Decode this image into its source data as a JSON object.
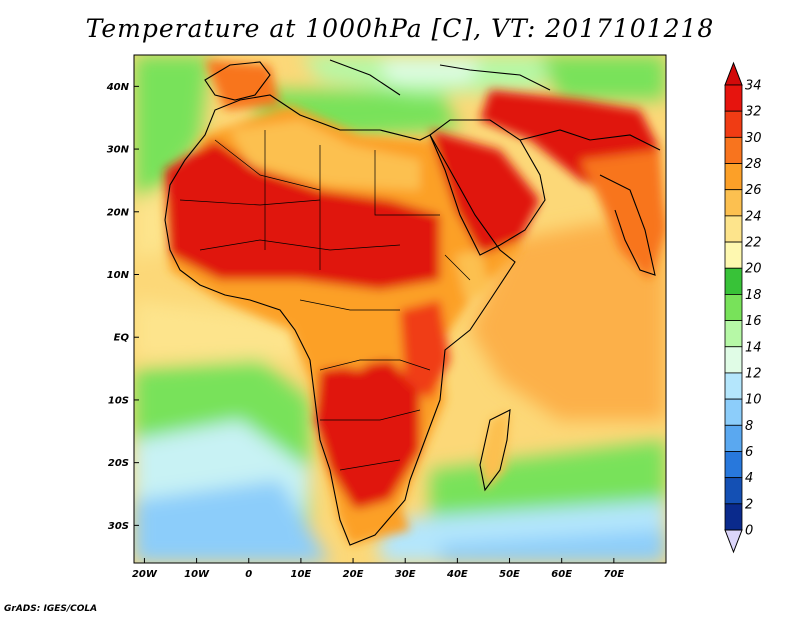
{
  "title": "Temperature at 1000hPa [C], VT: 2017101218",
  "credit": "GrADS: IGES/COLA",
  "map": {
    "lon_range": [
      -22,
      80
    ],
    "lat_range": [
      -36,
      45
    ],
    "x_ticks": [
      {
        "lon": -20,
        "label": "20W"
      },
      {
        "lon": -10,
        "label": "10W"
      },
      {
        "lon": 0,
        "label": "0"
      },
      {
        "lon": 10,
        "label": "10E"
      },
      {
        "lon": 20,
        "label": "20E"
      },
      {
        "lon": 30,
        "label": "30E"
      },
      {
        "lon": 40,
        "label": "40E"
      },
      {
        "lon": 50,
        "label": "50E"
      },
      {
        "lon": 60,
        "label": "60E"
      },
      {
        "lon": 70,
        "label": "70E"
      }
    ],
    "y_ticks": [
      {
        "lat": 40,
        "label": "40N"
      },
      {
        "lat": 30,
        "label": "30N"
      },
      {
        "lat": 20,
        "label": "20N"
      },
      {
        "lat": 10,
        "label": "10N"
      },
      {
        "lat": 0,
        "label": "EQ"
      },
      {
        "lat": -10,
        "label": "10S"
      },
      {
        "lat": -20,
        "label": "20S"
      },
      {
        "lat": -30,
        "label": "30S"
      }
    ]
  },
  "colorbar": {
    "labels": [
      "34",
      "32",
      "30",
      "28",
      "26",
      "24",
      "22",
      "20",
      "18",
      "16",
      "14",
      "12",
      "10",
      "8",
      "6",
      "4",
      "2",
      "0"
    ],
    "colors": [
      "#e6140e",
      "#f03c14",
      "#f8741e",
      "#fca028",
      "#fcc050",
      "#fde48c",
      "#fef8b0",
      "#38c238",
      "#78e25a",
      "#b6f8a6",
      "#e0fce6",
      "#b4e6fc",
      "#8ccdfa",
      "#5aa8f0",
      "#2878dc",
      "#1450b4",
      "#0a2a8c"
    ],
    "top_color": "#d20a0a",
    "bottom_color": "#dcd6fa"
  }
}
